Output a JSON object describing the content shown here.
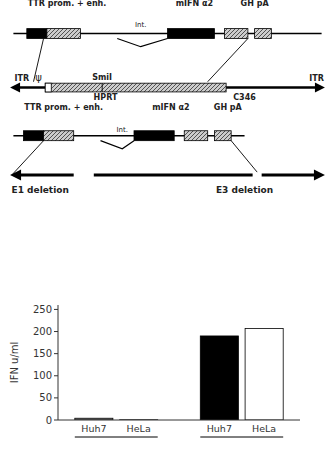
{
  "chart_data": {
    "type": "bar",
    "annotations": [
      "TTR prom. + enh.",
      "mIFN α2",
      "GH pA",
      "Int.",
      "ITR",
      "ψ",
      "SmiI",
      "HPRT",
      "C346",
      "ITR",
      "TTR prom. + enh.",
      "mIFN α2",
      "GH pA",
      "Int.",
      "E1 deletion",
      "E3 deletion"
    ],
    "categories": [
      "Huh7",
      "HeLa",
      "Huh7",
      "HeLa"
    ],
    "values": [
      4,
      0.5,
      190,
      207
    ],
    "colors": [
      "#888888",
      "#cccccc",
      "black",
      "white"
    ],
    "y_label": "IFN u/ml",
    "ylim": [
      0,
      260
    ],
    "yticks": [
      0,
      50,
      100,
      150,
      200,
      250
    ],
    "grid": false
  }
}
